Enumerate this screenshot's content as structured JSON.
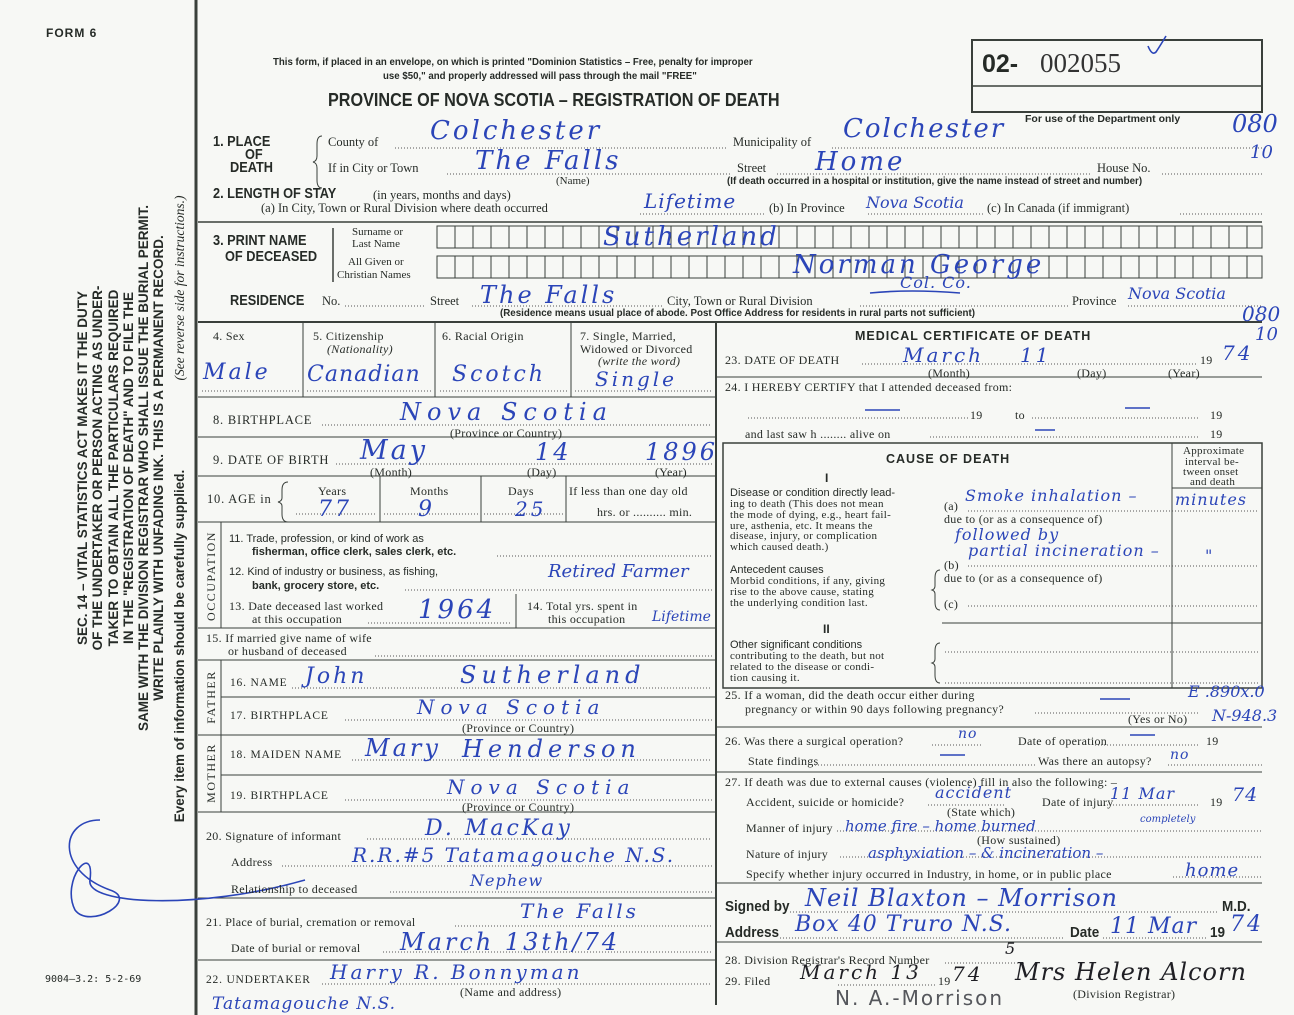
{
  "header": {
    "form_no": "FORM 6",
    "mail_notice_1": "This form, if placed in an envelope, on which is printed \"Dominion Statistics – Free, penalty for improper",
    "mail_notice_2": "use $50,\" and properly addressed will pass through the mail \"FREE\"",
    "title": "PROVINCE OF NOVA SCOTIA – REGISTRATION OF DEATH",
    "registration_prefix": "02-",
    "registration_number": "002055",
    "dept_use": "For use of the Department only",
    "dept_codes": [
      "080",
      "10",
      "080",
      "10"
    ]
  },
  "sidebar": {
    "statute": [
      "SEC. 14 – VITAL STATISTICS ACT MAKES IT THE DUTY",
      "OF THE UNDERTAKER OR PERSON ACTING AS UNDER-",
      "TAKER TO OBTAIN ALL THE PARTICULARS REQUIRED",
      "IN THE \"REGISTRATION OF DEATH\" AND TO FILE THE",
      "SAME WITH THE DIVISION REGISTRAR WHO SHALL ISSUE THE BURIAL PERMIT.",
      "WRITE PLAINLY WITH UNFADING INK. THIS IS A PERMANENT RECORD."
    ],
    "instruction": "Every item of information should be carefully supplied.",
    "reverse_note": "(See reverse side for instructions.)",
    "print_code": "9004—3.2: 5-2-69"
  },
  "labels": {
    "s1_a": "1. PLACE",
    "s1_b": "OF",
    "s1_c": "DEATH",
    "county": "County of",
    "municipality": "Municipality of",
    "city_town": "If in City or Town",
    "street": "Street",
    "house_no": "House No.",
    "name_note": "(Name)",
    "hospital_note": "(If death occurred in a hospital or institution, give the name instead of street and number)",
    "s2": "2. LENGTH OF STAY",
    "s2_units": "(in years, months and days)",
    "s2_a": "(a) In City, Town or Rural Division where death occurred",
    "s2_b": "(b) In Province",
    "s2_c": "(c) In Canada (if immigrant)",
    "s3_a": "3. PRINT NAME",
    "s3_b": "OF DECEASED",
    "surname_a": "Surname or",
    "surname_b": "Last Name",
    "given_a": "All Given or",
    "given_b": "Christian Names",
    "residence": "RESIDENCE",
    "res_no": "No.",
    "res_street": "Street",
    "res_city": "City, Town or Rural Division",
    "res_province": "Province",
    "res_note": "(Residence means usual place of abode. Post Office Address for residents in rural parts not sufficient)",
    "s4": "4. Sex",
    "s5": "5. Citizenship",
    "s5_sub": "(Nationality)",
    "s6": "6. Racial Origin",
    "s7_a": "7. Single, Married,",
    "s7_b": "Widowed or Divorced",
    "s7_c": "(write the word)",
    "s8": "8. BIRTHPLACE",
    "prov_country": "(Province or Country)",
    "s9": "9. DATE OF BIRTH",
    "month": "(Month)",
    "day": "(Day)",
    "year": "(Year)",
    "s10": "10. AGE in",
    "years": "Years",
    "months": "Months",
    "days": "Days",
    "less_day": "If less than one day old",
    "hrs_min": "hrs. or .......... min.",
    "occupation": "OCCUPATION",
    "s11_a": "11. Trade, profession, or kind of work as",
    "s11_b": "fisherman, office clerk, sales clerk, etc.",
    "s12_a": "12. Kind of industry or business, as fishing,",
    "s12_b": "bank, grocery store, etc.",
    "s13_a": "13. Date deceased last worked",
    "s13_b": "at this occupation",
    "s14_a": "14. Total yrs. spent in",
    "s14_b": "this occupation",
    "s15_a": "15. If married give name of wife",
    "s15_b": "or husband of deceased",
    "father": "FATHER",
    "mother": "MOTHER",
    "s16": "16. NAME",
    "s17": "17. BIRTHPLACE",
    "s18": "18. MAIDEN NAME",
    "s19": "19. BIRTHPLACE",
    "s20": "20. Signature of informant",
    "s20_addr": "Address",
    "s20_rel": "Relationship to deceased",
    "s21": "21. Place of burial, cremation or removal",
    "s21_date": "Date of burial or removal",
    "s22": "22. UNDERTAKER",
    "s22_note": "(Name and address)",
    "med_title": "MEDICAL CERTIFICATE OF DEATH",
    "s23": "23. DATE OF DEATH",
    "s23_year": "19",
    "s24": "24. I HEREBY CERTIFY that I attended deceased from:",
    "s24_19a": "19",
    "s24_to": "to",
    "s24_19b": "19",
    "s24_last": "and last saw h ........  alive on",
    "s24_19c": "19",
    "cause_title": "CAUSE OF DEATH",
    "interval": [
      "Approximate",
      "interval be-",
      "tween onset",
      "and death"
    ],
    "part1": "I",
    "part2": "II",
    "direct_a": "Disease or condition directly lead-",
    "direct_b": [
      "ing to death (This does not mean",
      "the mode of dying, e.g., heart fail-",
      "ure, asthenia, etc. It means the",
      "disease, injury, or complication",
      "which caused death.)"
    ],
    "antecedent": "Antecedent causes",
    "antecedent_b": [
      "Morbid conditions, if any, giving",
      "rise to the above cause, stating",
      "the underlying condition last."
    ],
    "other": "Other significant conditions",
    "other_b": [
      "contributing to the death, but not",
      "related to the disease or condi-",
      "tion causing it."
    ],
    "cause_a": "(a)",
    "cause_b": "(b)",
    "cause_c": "(c)",
    "due_to": "due to (or as a consequence of)",
    "s25_a": "25. If a woman, did the death occur either during",
    "s25_b": "pregnancy or within 90 days following pregnancy?",
    "yes_no": "(Yes or No)",
    "s26": "26. Was there a surgical operation?",
    "s26_date": "Date of operation",
    "s26_19": "19",
    "findings": "State findings",
    "autopsy": "Was there an autopsy?",
    "s27": "27. If death was due to external causes (violence) fill in also the following: –",
    "accident": "Accident, suicide or homicide?",
    "state_which": "(State which)",
    "injury_date": "Date of injury",
    "injury_19": "19",
    "manner": "Manner of injury",
    "how": "(How sustained)",
    "nature": "Nature of injury",
    "specify": "Specify whether injury occurred in Industry, in home, or in public place",
    "signed": "Signed by",
    "md": "M.D.",
    "address": "Address",
    "date": "Date",
    "date_19": "19",
    "s28": "28. Division Registrar's Record Number",
    "s29": "29. Filed",
    "s29_19": "19",
    "div_registrar": "(Division Registrar)"
  },
  "entries": {
    "county": "Colchester",
    "municipality": "Colchester",
    "city_town": "The Falls",
    "street": "Home",
    "stay_city": "Lifetime",
    "stay_province": "Nova Scotia",
    "surname": "Sutherland",
    "given_names": "Norman George",
    "res_street": "The Falls",
    "res_city": "Col. Co.",
    "res_province": "Nova Scotia",
    "sex": "Male",
    "citizenship": "Canadian",
    "racial_origin": "Scotch",
    "marital": "Single",
    "birthplace": "Nova Scotia",
    "birth_month": "May",
    "birth_day": "14",
    "birth_year": "1896",
    "age_years": "77",
    "age_months": "9",
    "age_days": "25",
    "industry": "Retired Farmer",
    "last_worked": "1964",
    "years_in_occupation": "Lifetime",
    "father_name_first": "John",
    "father_name_last": "Sutherland",
    "father_birthplace": "Nova Scotia",
    "mother_maiden_first": "Mary",
    "mother_maiden_last": "Henderson",
    "mother_birthplace": "Nova Scotia",
    "informant": "D. MacKay",
    "informant_address": "R.R.#5 Tatamagouche N.S.",
    "relationship": "Nephew",
    "burial_place": "The Falls",
    "burial_date": "March 13th/74",
    "undertaker_name": "Harry R. Bonnyman",
    "undertaker_address": "Tatamagouche N.S.",
    "death_month": "March",
    "death_day": "11",
    "death_year": "74",
    "dash": "—",
    "cause_a": "Smoke inhalation –",
    "interval_a": "minutes",
    "cause_followed": "followed by",
    "cause_b": "partial incineration –",
    "interval_b": "\"",
    "code_e": "E .890x.0",
    "code_n": "N-948.3",
    "operation": "no",
    "autopsy_answer": "no",
    "accident": "accident",
    "injury_date": "11 Mar",
    "injury_year": "74",
    "manner": "home fire – home burned",
    "manner_note": "completely",
    "nature": "asphyxiation – & incineration –",
    "place_type": "home",
    "physician": "Neil Blaxton – Morrison",
    "physician_address": "Box 40  Truro N.S.",
    "cert_date": "11 Mar",
    "cert_year": "74",
    "record_number": "5",
    "filed_date": "March 13",
    "filed_year": "74",
    "registrar_signature": "Mrs Helen Alcorn",
    "registrar_stamp": "N. A.-Morrison"
  },
  "colors": {
    "ink": "#2b45b8",
    "print": "#262b27",
    "paper": "#f7f8f5"
  }
}
